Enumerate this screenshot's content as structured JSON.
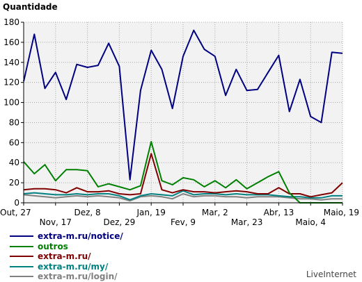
{
  "chart_data": {
    "type": "line",
    "ylabel": "Quantidade",
    "ylim": [
      0,
      180
    ],
    "yticks": [
      0,
      20,
      40,
      60,
      80,
      100,
      120,
      140,
      160,
      180
    ],
    "grid": true,
    "legend_position": "bottom-left",
    "x_tick_labels": [
      {
        "index": 0,
        "label": "Out, 27",
        "row": 1
      },
      {
        "index": 3,
        "label": "Nov, 17",
        "row": 2
      },
      {
        "index": 6,
        "label": "Dez, 8",
        "row": 1
      },
      {
        "index": 9,
        "label": "Dez, 29",
        "row": 2
      },
      {
        "index": 12,
        "label": "Jan, 19",
        "row": 1
      },
      {
        "index": 15,
        "label": "Fev, 9",
        "row": 2
      },
      {
        "index": 18,
        "label": "Mar, 2",
        "row": 1
      },
      {
        "index": 21,
        "label": "Mar, 23",
        "row": 2
      },
      {
        "index": 24,
        "label": "Abr, 13",
        "row": 1
      },
      {
        "index": 27,
        "label": "Maio, 4",
        "row": 2
      },
      {
        "index": 30,
        "label": "Maio, 19",
        "row": 1
      }
    ],
    "series": [
      {
        "name": "extra-m.ru/notice/",
        "color": "#000080",
        "values": [
          121,
          168,
          114,
          130,
          103,
          138,
          135,
          137,
          159,
          136,
          23,
          112,
          152,
          133,
          94,
          146,
          172,
          153,
          146,
          107,
          133,
          112,
          113,
          130,
          147,
          91,
          123,
          86,
          80,
          150,
          149
        ]
      },
      {
        "name": "outros",
        "color": "#008000",
        "values": [
          41,
          29,
          38,
          22,
          33,
          33,
          32,
          16,
          19,
          16,
          13,
          17,
          61,
          22,
          18,
          25,
          23,
          16,
          22,
          15,
          23,
          14,
          20,
          26,
          31,
          10,
          0,
          0,
          0,
          0,
          0
        ]
      },
      {
        "name": "extra-m.ru/",
        "color": "#800000",
        "values": [
          13,
          14,
          14,
          13,
          10,
          15,
          11,
          11,
          12,
          9,
          8,
          9,
          49,
          13,
          10,
          13,
          11,
          11,
          10,
          11,
          12,
          11,
          9,
          9,
          15,
          9,
          9,
          6,
          8,
          10,
          20
        ]
      },
      {
        "name": "extra-m.ru/my/",
        "color": "#008080",
        "values": [
          9,
          10,
          9,
          8,
          8,
          9,
          8,
          9,
          9,
          7,
          3,
          7,
          9,
          8,
          7,
          12,
          8,
          9,
          9,
          8,
          9,
          8,
          8,
          8,
          7,
          6,
          6,
          5,
          5,
          7,
          7
        ]
      },
      {
        "name": "extra-m.ru/login/",
        "color": "#808080",
        "values": [
          8,
          7,
          6,
          5,
          6,
          7,
          6,
          7,
          6,
          5,
          2,
          6,
          7,
          6,
          4,
          9,
          6,
          7,
          7,
          6,
          6,
          5,
          6,
          6,
          6,
          5,
          4,
          4,
          3,
          4,
          4
        ]
      }
    ]
  },
  "footer": {
    "credit": "LiveInternet"
  }
}
